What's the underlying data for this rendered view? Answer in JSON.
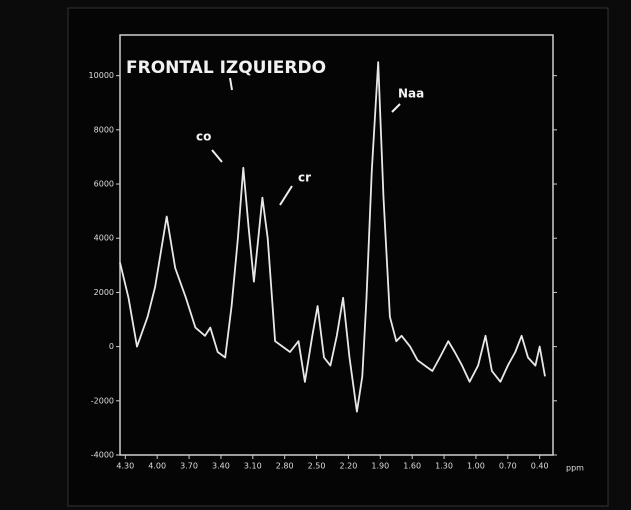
{
  "chart_data": {
    "type": "line",
    "title": "FRONTAL IZQUIERDO",
    "x_label": "ppm",
    "annotations": [
      "co",
      "cr",
      "Naa"
    ],
    "x": [
      4.35,
      4.27,
      4.19,
      4.09,
      4.02,
      3.91,
      3.83,
      3.73,
      3.64,
      3.55,
      3.5,
      3.43,
      3.36,
      3.3,
      3.24,
      3.19,
      3.14,
      3.09,
      3.01,
      2.96,
      2.89,
      2.82,
      2.75,
      2.67,
      2.61,
      2.54,
      2.49,
      2.43,
      2.37,
      2.31,
      2.25,
      2.19,
      2.12,
      2.07,
      2.03,
      1.98,
      1.92,
      1.87,
      1.81,
      1.75,
      1.7,
      1.62,
      1.55,
      1.48,
      1.41,
      1.34,
      1.26,
      1.2,
      1.13,
      1.06,
      0.98,
      0.91,
      0.85,
      0.77,
      0.7,
      0.63,
      0.57,
      0.51,
      0.44,
      0.4,
      0.35
    ],
    "series": [
      {
        "color": "#e8e8e8",
        "values": [
          3100,
          1800,
          0,
          1100,
          2200,
          4800,
          2900,
          1800,
          700,
          400,
          700,
          -200,
          -400,
          1500,
          4000,
          6600,
          4400,
          2400,
          5500,
          4000,
          200,
          0,
          -200,
          200,
          -1300,
          400,
          1500,
          -400,
          -700,
          400,
          1800,
          -400,
          -2400,
          -1100,
          1800,
          6500,
          10500,
          5500,
          1100,
          200,
          400,
          0,
          -500,
          -700,
          -900,
          -400,
          200,
          -200,
          -700,
          -1300,
          -700,
          400,
          -900,
          -1300,
          -700,
          -200,
          400,
          -400,
          -700,
          0,
          -1100
        ]
      }
    ],
    "xlim": [
      4.35,
      0.35
    ],
    "ylim": [
      -4000,
      11500
    ],
    "xticks": [
      {
        "value": 4.3,
        "label": "4.30"
      },
      {
        "value": 4.0,
        "label": "4.00"
      },
      {
        "value": 3.7,
        "label": "3.70"
      },
      {
        "value": 3.4,
        "label": "3.40"
      },
      {
        "value": 3.1,
        "label": "3.10"
      },
      {
        "value": 2.8,
        "label": "2.80"
      },
      {
        "value": 2.5,
        "label": "2.50"
      },
      {
        "value": 2.2,
        "label": "2.20"
      },
      {
        "value": 1.9,
        "label": "1.90"
      },
      {
        "value": 1.6,
        "label": "1.60"
      },
      {
        "value": 1.3,
        "label": "1.30"
      },
      {
        "value": 1.0,
        "label": "1.00"
      },
      {
        "value": 0.7,
        "label": "0.70"
      },
      {
        "value": 0.4,
        "label": "0.40"
      }
    ],
    "yticks": [
      -4000,
      -2000,
      0,
      2000,
      4000,
      6000,
      8000,
      10000
    ]
  }
}
